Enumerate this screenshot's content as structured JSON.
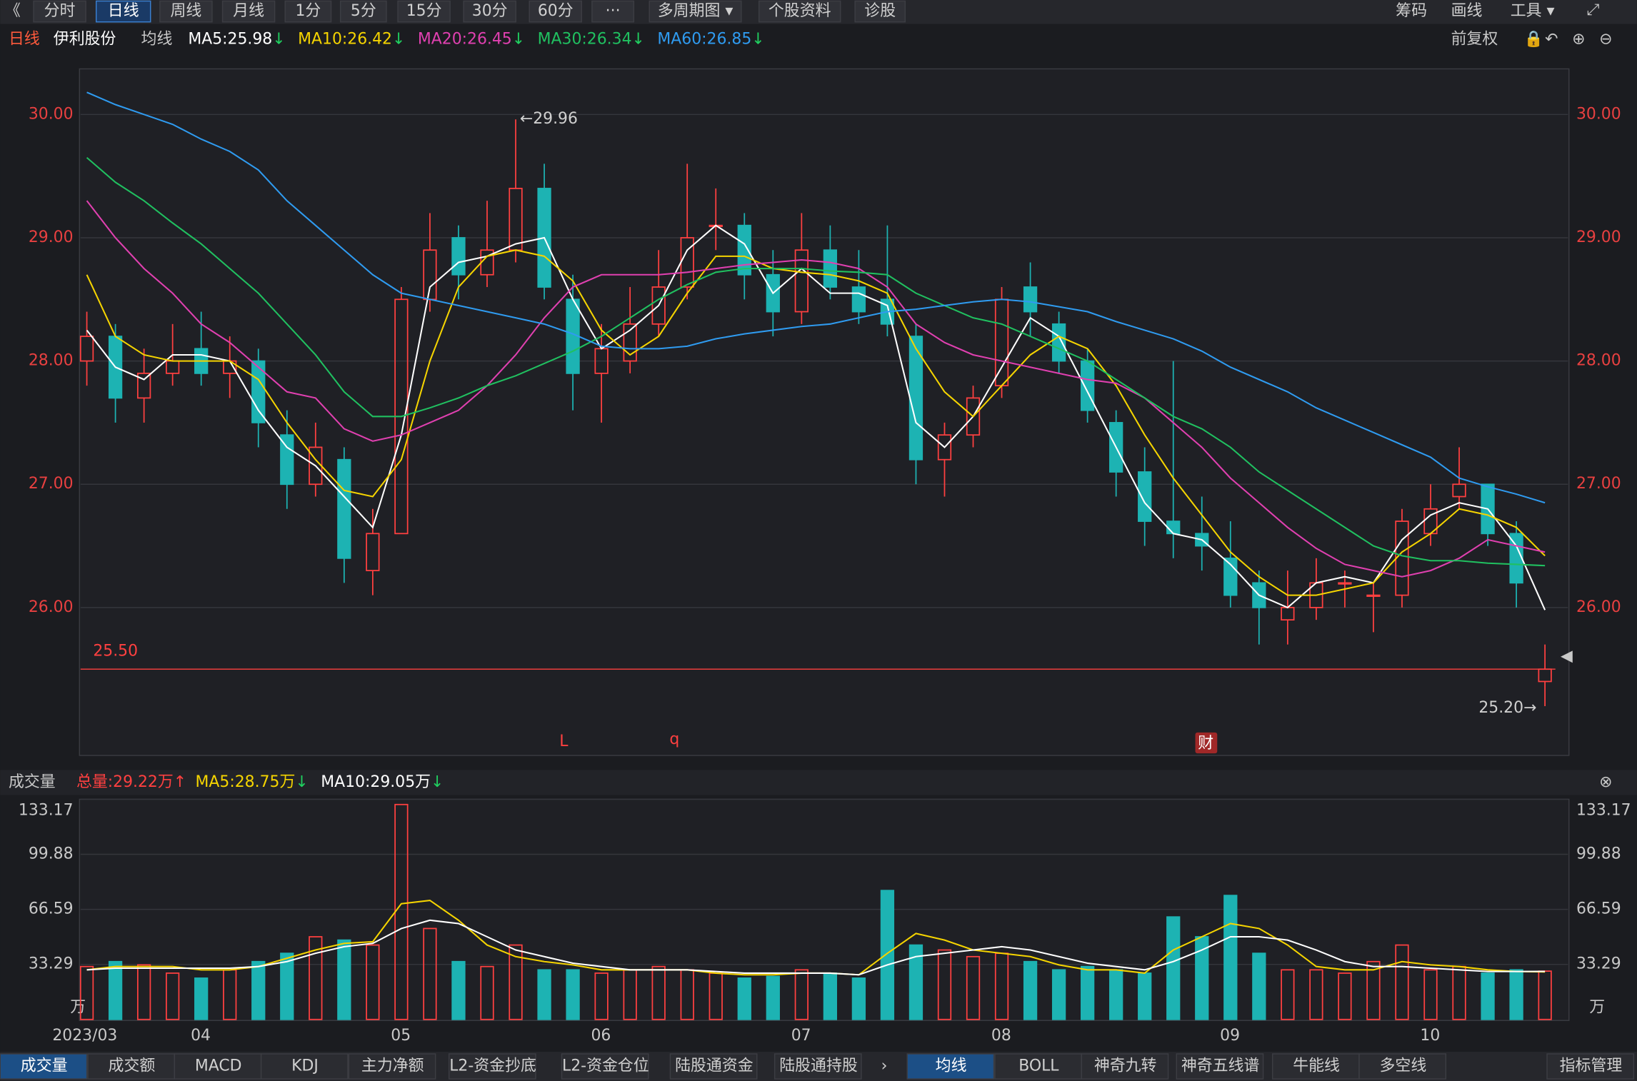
{
  "toolbar": {
    "left": [
      "《",
      "分时",
      "日线",
      "周线",
      "月线",
      "1分",
      "5分",
      "15分",
      "30分",
      "60分",
      "···",
      "多周期图 ▾",
      "个股资料",
      "诊股"
    ],
    "right": [
      "筹码",
      "画线",
      "工具 ▾"
    ]
  },
  "header": {
    "period": "日线",
    "stock": "伊利股份",
    "ma_title": "均线",
    "adjust": "前复权"
  },
  "chart_data": [
    {
      "type": "candlestick",
      "categories": [
        "2023/03",
        null,
        null,
        null,
        "04",
        null,
        null,
        null,
        null,
        null,
        null,
        "05",
        null,
        null,
        null,
        null,
        null,
        null,
        "06",
        null,
        null,
        null,
        null,
        null,
        null,
        "07",
        null,
        null,
        null,
        null,
        null,
        null,
        "08",
        null,
        null,
        null,
        null,
        null,
        null,
        null,
        "09",
        null,
        null,
        null,
        null,
        null,
        null,
        "10",
        null,
        null,
        null,
        null
      ],
      "candles": [
        [
          28.0,
          28.4,
          27.8,
          28.2
        ],
        [
          28.2,
          28.3,
          27.5,
          27.7
        ],
        [
          27.7,
          28.1,
          27.5,
          27.9
        ],
        [
          27.9,
          28.3,
          27.8,
          28.0
        ],
        [
          28.1,
          28.4,
          27.8,
          27.9
        ],
        [
          27.9,
          28.2,
          27.7,
          28.0
        ],
        [
          28.0,
          28.1,
          27.3,
          27.5
        ],
        [
          27.4,
          27.6,
          26.8,
          27.0
        ],
        [
          27.0,
          27.5,
          26.9,
          27.3
        ],
        [
          27.2,
          27.3,
          26.2,
          26.4
        ],
        [
          26.3,
          26.8,
          26.1,
          26.6
        ],
        [
          26.6,
          28.6,
          26.6,
          28.5
        ],
        [
          28.5,
          29.2,
          28.4,
          28.9
        ],
        [
          29.0,
          29.1,
          28.5,
          28.7
        ],
        [
          28.7,
          29.3,
          28.6,
          28.9
        ],
        [
          28.9,
          29.96,
          28.8,
          29.4
        ],
        [
          29.4,
          29.6,
          28.5,
          28.6
        ],
        [
          28.5,
          28.7,
          27.6,
          27.9
        ],
        [
          27.9,
          28.3,
          27.5,
          28.1
        ],
        [
          28.0,
          28.6,
          27.9,
          28.3
        ],
        [
          28.3,
          28.9,
          28.2,
          28.6
        ],
        [
          28.6,
          29.6,
          28.5,
          29.0
        ],
        [
          29.1,
          29.4,
          28.9,
          29.1
        ],
        [
          29.1,
          29.2,
          28.5,
          28.7
        ],
        [
          28.7,
          28.9,
          28.2,
          28.4
        ],
        [
          28.4,
          29.2,
          28.3,
          28.9
        ],
        [
          28.9,
          29.1,
          28.5,
          28.6
        ],
        [
          28.6,
          28.9,
          28.3,
          28.4
        ],
        [
          28.5,
          29.1,
          28.2,
          28.3
        ],
        [
          28.2,
          28.3,
          27.0,
          27.2
        ],
        [
          27.2,
          27.5,
          26.9,
          27.4
        ],
        [
          27.4,
          27.8,
          27.3,
          27.7
        ],
        [
          27.8,
          28.6,
          27.7,
          28.5
        ],
        [
          28.6,
          28.8,
          28.2,
          28.4
        ],
        [
          28.3,
          28.4,
          27.9,
          28.0
        ],
        [
          28.0,
          28.1,
          27.5,
          27.6
        ],
        [
          27.5,
          27.6,
          26.9,
          27.1
        ],
        [
          27.1,
          27.3,
          26.5,
          26.7
        ],
        [
          26.7,
          28.0,
          26.4,
          26.6
        ],
        [
          26.6,
          26.9,
          26.3,
          26.5
        ],
        [
          26.4,
          26.7,
          26.0,
          26.1
        ],
        [
          26.2,
          26.3,
          25.7,
          26.0
        ],
        [
          25.9,
          26.3,
          25.7,
          26.0
        ],
        [
          26.0,
          26.4,
          25.9,
          26.2
        ],
        [
          26.2,
          26.3,
          26.0,
          26.2
        ],
        [
          26.1,
          26.2,
          25.8,
          26.1
        ],
        [
          26.1,
          26.8,
          26.0,
          26.7
        ],
        [
          26.6,
          27.0,
          26.5,
          26.8
        ],
        [
          26.9,
          27.3,
          26.8,
          27.0
        ],
        [
          27.0,
          27.0,
          26.5,
          26.6
        ],
        [
          26.6,
          26.7,
          26.0,
          26.2
        ],
        [
          25.4,
          25.7,
          25.2,
          25.5
        ]
      ],
      "series": [
        {
          "label": "MA5:25.98",
          "trend": "↓",
          "color": "#ffffff",
          "values": [
            28.25,
            27.95,
            27.85,
            28.05,
            28.05,
            28.0,
            27.6,
            27.3,
            27.15,
            26.9,
            26.65,
            27.4,
            28.6,
            28.8,
            28.85,
            28.95,
            29.0,
            28.5,
            28.1,
            28.25,
            28.45,
            28.9,
            29.1,
            28.95,
            28.55,
            28.75,
            28.55,
            28.55,
            28.45,
            27.5,
            27.3,
            27.55,
            27.95,
            28.35,
            28.2,
            27.75,
            27.3,
            26.85,
            26.6,
            26.55,
            26.35,
            26.1,
            26.0,
            26.2,
            26.25,
            26.2,
            26.55,
            26.75,
            26.85,
            26.8,
            26.5,
            25.98
          ]
        },
        {
          "label": "MA10:26.42",
          "trend": "↓",
          "color": "#f5d400",
          "values": [
            28.7,
            28.2,
            28.05,
            28.0,
            28.0,
            28.0,
            27.85,
            27.5,
            27.2,
            26.95,
            26.9,
            27.2,
            28.0,
            28.6,
            28.85,
            28.9,
            28.85,
            28.65,
            28.25,
            28.05,
            28.2,
            28.55,
            28.85,
            28.85,
            28.75,
            28.72,
            28.7,
            28.65,
            28.55,
            28.1,
            27.75,
            27.55,
            27.8,
            28.05,
            28.2,
            28.1,
            27.8,
            27.4,
            27.05,
            26.75,
            26.45,
            26.25,
            26.1,
            26.1,
            26.15,
            26.2,
            26.45,
            26.6,
            26.8,
            26.75,
            26.65,
            26.42
          ]
        },
        {
          "label": "MA20:26.45",
          "trend": "↓",
          "color": "#e040b0",
          "values": [
            29.3,
            29.0,
            28.75,
            28.55,
            28.3,
            28.15,
            27.95,
            27.75,
            27.7,
            27.45,
            27.35,
            27.4,
            27.5,
            27.6,
            27.8,
            28.05,
            28.35,
            28.6,
            28.7,
            28.7,
            28.7,
            28.72,
            28.75,
            28.78,
            28.8,
            28.82,
            28.8,
            28.75,
            28.6,
            28.3,
            28.15,
            28.05,
            28.0,
            27.95,
            27.9,
            27.85,
            27.82,
            27.7,
            27.5,
            27.3,
            27.05,
            26.85,
            26.65,
            26.48,
            26.35,
            26.3,
            26.25,
            26.3,
            26.4,
            26.55,
            26.5,
            26.45
          ]
        },
        {
          "label": "MA30:26.34",
          "trend": "↓",
          "color": "#20c060",
          "values": [
            29.65,
            29.45,
            29.3,
            29.12,
            28.95,
            28.75,
            28.55,
            28.3,
            28.05,
            27.75,
            27.55,
            27.55,
            27.62,
            27.7,
            27.8,
            27.88,
            27.98,
            28.08,
            28.2,
            28.35,
            28.5,
            28.62,
            28.72,
            28.75,
            28.75,
            28.75,
            28.73,
            28.72,
            28.7,
            28.55,
            28.45,
            28.35,
            28.3,
            28.2,
            28.1,
            28.0,
            27.85,
            27.7,
            27.55,
            27.45,
            27.3,
            27.1,
            26.95,
            26.8,
            26.65,
            26.5,
            26.42,
            26.38,
            26.38,
            26.36,
            26.35,
            26.34
          ]
        },
        {
          "label": "MA60:26.85",
          "trend": "↓",
          "color": "#2f9bf0",
          "values": [
            30.18,
            30.08,
            30.0,
            29.92,
            29.8,
            29.7,
            29.55,
            29.3,
            29.1,
            28.9,
            28.7,
            28.55,
            28.5,
            28.45,
            28.4,
            28.35,
            28.3,
            28.22,
            28.12,
            28.1,
            28.1,
            28.12,
            28.18,
            28.22,
            28.25,
            28.28,
            28.3,
            28.35,
            28.4,
            28.42,
            28.45,
            28.48,
            28.5,
            28.48,
            28.44,
            28.4,
            28.32,
            28.25,
            28.18,
            28.08,
            27.95,
            27.85,
            27.75,
            27.62,
            27.52,
            27.42,
            27.32,
            27.22,
            27.05,
            26.98,
            26.92,
            26.85
          ]
        }
      ],
      "up_color": "#ff4040",
      "down_color": "#1db3b3",
      "ylim": [
        24.8,
        30.37
      ],
      "yticks": [
        {
          "value": 26,
          "label": "26.00"
        },
        {
          "value": 27,
          "label": "27.00"
        },
        {
          "value": 28,
          "label": "28.00"
        },
        {
          "value": 29,
          "label": "29.00"
        },
        {
          "value": 30,
          "label": "30.00"
        }
      ],
      "grid": true,
      "reference_line": {
        "value": 25.5,
        "label": "25.50",
        "color": "#ff4040"
      },
      "high_label": "←29.96",
      "low_label": "25.20→",
      "markers": [
        "L",
        "q",
        "财"
      ]
    },
    {
      "type": "bar",
      "title": "成交量",
      "total": {
        "label": "总量:29.22万",
        "trend": "↑"
      },
      "values": [
        32,
        35,
        33,
        28,
        25,
        30,
        35,
        40,
        50,
        48,
        45,
        130,
        55,
        35,
        32,
        45,
        30,
        30,
        28,
        30,
        32,
        30,
        28,
        25,
        26,
        30,
        28,
        25,
        78,
        45,
        42,
        38,
        40,
        35,
        30,
        32,
        30,
        28,
        62,
        50,
        75,
        40,
        30,
        30,
        28,
        35,
        45,
        30,
        32,
        28,
        30,
        29.22
      ],
      "series": [
        {
          "label": "MA5:28.75万",
          "trend": "↓",
          "color": "#f5d400",
          "values": [
            30,
            32,
            32,
            32,
            30,
            30,
            32,
            37,
            42,
            46,
            47,
            70,
            72,
            60,
            45,
            38,
            35,
            33,
            30,
            30,
            30,
            30,
            28,
            27,
            27,
            28,
            28,
            27,
            40,
            52,
            48,
            42,
            40,
            38,
            33,
            30,
            30,
            28,
            42,
            50,
            58,
            55,
            45,
            32,
            30,
            30,
            35,
            33,
            32,
            30,
            29,
            28.75
          ]
        },
        {
          "label": "MA10:29.05万",
          "trend": "↓",
          "color": "#ffffff",
          "values": [
            30,
            31,
            31,
            31,
            31,
            31,
            32,
            35,
            40,
            44,
            46,
            55,
            60,
            58,
            50,
            42,
            38,
            34,
            32,
            30,
            30,
            30,
            29,
            28,
            28,
            28,
            28,
            27,
            33,
            38,
            40,
            42,
            44,
            42,
            38,
            34,
            32,
            30,
            35,
            42,
            50,
            50,
            48,
            42,
            35,
            32,
            32,
            31,
            30,
            29,
            29,
            29.05
          ]
        }
      ],
      "ylim": [
        0,
        133.17
      ],
      "yticks": [
        33.29,
        66.59,
        99.88,
        133.17
      ],
      "unit": "万",
      "grid": true
    }
  ],
  "bottom_tabs": {
    "left": [
      "成交量",
      "成交额",
      "MACD",
      "KDJ",
      "主力净额",
      "L2-资金抄底",
      "L2-资金仓位",
      "陆股通资金",
      "陆股通持股"
    ],
    "right": [
      "均线",
      "BOLL",
      "神奇九转",
      "神奇五线谱",
      "牛能线",
      "多空线",
      "指标管理"
    ]
  }
}
